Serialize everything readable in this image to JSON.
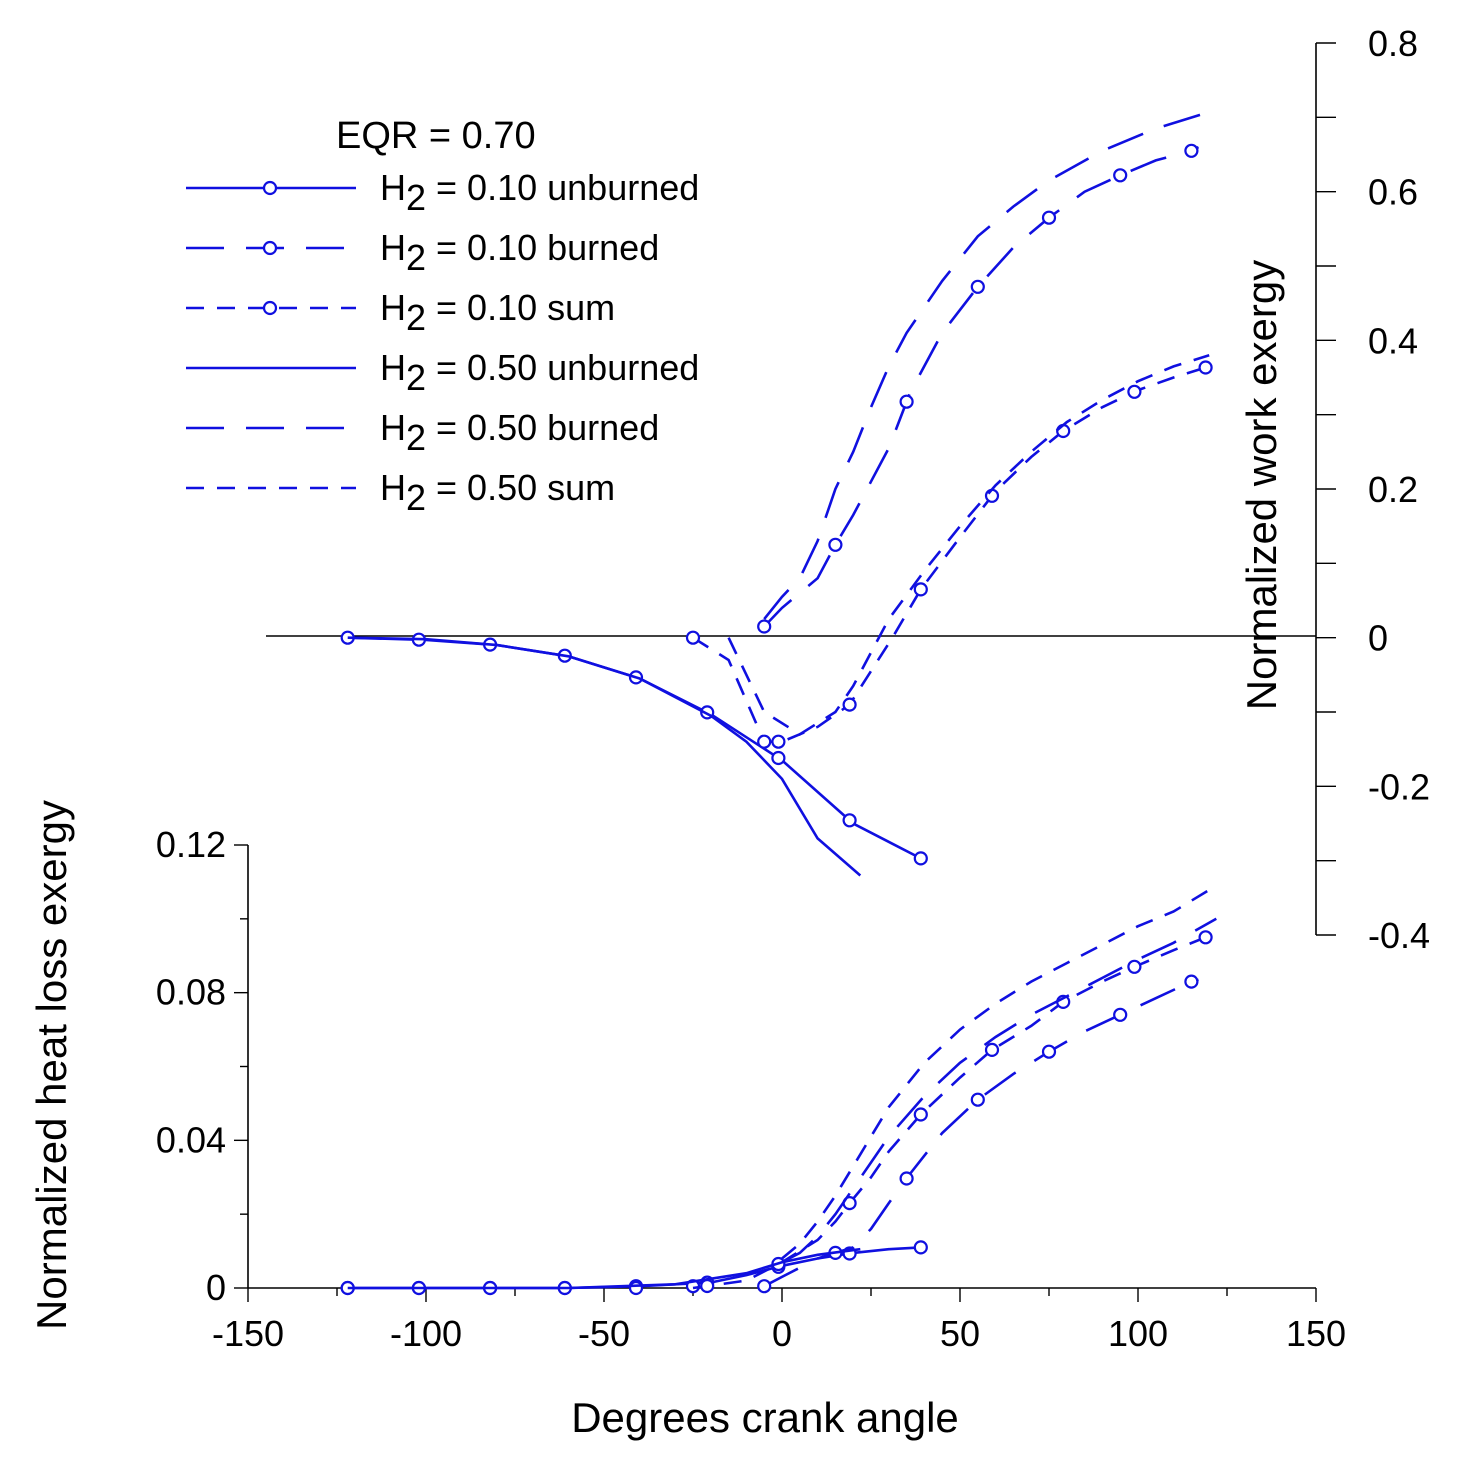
{
  "chart_data": {
    "type": "line",
    "title": "",
    "color": "#1010e0",
    "xlabel": "Degrees crank angle",
    "xlim": [
      -150,
      150
    ],
    "xticks": [
      -150,
      -100,
      -50,
      0,
      50,
      100,
      150
    ],
    "ylabel_left": "Normalized heat loss exergy",
    "ylim_left": [
      0,
      0.12
    ],
    "yticks_left": [
      0,
      0.04,
      0.08,
      0.12
    ],
    "yticklabels_left": [
      "0",
      "0.04",
      "0.08",
      "0.12"
    ],
    "ylabel_right": "Normalized work exergy",
    "ylim_right": [
      -0.4,
      0.8
    ],
    "yticks_right": [
      -0.4,
      -0.2,
      0,
      0.2,
      0.4,
      0.6,
      0.8
    ],
    "yticklabels_right": [
      "-0.4",
      "-0.2",
      "0",
      "0.2",
      "0.4",
      "0.6",
      "0.8"
    ],
    "legend": {
      "title": "EQR = 0.70",
      "entries": [
        {
          "prefix": "H",
          "sub": "2",
          "rest": " = 0.10 unburned",
          "dash": "solid",
          "marker": true
        },
        {
          "prefix": "H",
          "sub": "2",
          "rest": " = 0.10 burned",
          "dash": "long",
          "marker": true
        },
        {
          "prefix": "H",
          "sub": "2",
          "rest": " = 0.10 sum",
          "dash": "short",
          "marker": true
        },
        {
          "prefix": "H",
          "sub": "2",
          "rest": " = 0.50 unburned",
          "dash": "solid",
          "marker": false
        },
        {
          "prefix": "H",
          "sub": "2",
          "rest": " = 0.50 burned",
          "dash": "long",
          "marker": false
        },
        {
          "prefix": "H",
          "sub": "2",
          "rest": " = 0.50 sum",
          "dash": "short",
          "marker": false
        }
      ]
    },
    "series": [
      {
        "name": "Work H2 = 0.10 unburned",
        "axis": "right",
        "dash": "solid",
        "marker": true,
        "x": [
          -122,
          -100,
          -80,
          -60,
          -40,
          -20,
          0,
          20,
          39
        ],
        "y": [
          0.0,
          -0.003,
          -0.01,
          -0.025,
          -0.055,
          -0.103,
          -0.165,
          -0.25,
          -0.297
        ],
        "marker_x": [
          -122,
          -102,
          -82,
          -61,
          -41,
          -21,
          -1,
          19,
          39
        ]
      },
      {
        "name": "Work H2 = 0.10 burned",
        "axis": "right",
        "dash": "long",
        "marker": true,
        "x": [
          -5,
          0,
          10,
          15,
          20,
          30,
          36,
          45,
          55,
          65,
          75,
          85,
          95,
          105,
          115,
          117
        ],
        "y": [
          0.015,
          0.04,
          0.08,
          0.125,
          0.165,
          0.255,
          0.33,
          0.41,
          0.472,
          0.525,
          0.565,
          0.6,
          0.622,
          0.642,
          0.655,
          0.66
        ],
        "marker_x": [
          -5,
          15,
          35,
          55,
          75,
          95,
          115
        ]
      },
      {
        "name": "Work H2 = 0.10 sum",
        "axis": "right",
        "dash": "short",
        "marker": true,
        "x": [
          -25,
          -15,
          -5,
          0,
          10,
          19,
          25,
          31,
          39,
          50,
          60,
          70,
          79,
          90,
          100,
          110,
          120
        ],
        "y": [
          0.0,
          -0.03,
          -0.14,
          -0.14,
          -0.12,
          -0.09,
          -0.045,
          0.0,
          0.065,
          0.135,
          0.197,
          0.243,
          0.278,
          0.31,
          0.333,
          0.35,
          0.365
        ],
        "marker_x": [
          -25,
          -5,
          -1,
          19,
          39,
          59,
          79,
          99,
          119
        ]
      },
      {
        "name": "Work H2 = 0.50 unburned",
        "axis": "right",
        "dash": "solid",
        "marker": false,
        "x": [
          -122,
          -100,
          -80,
          -60,
          -40,
          -20,
          -10,
          0,
          10,
          22
        ],
        "y": [
          0.0,
          -0.002,
          -0.01,
          -0.025,
          -0.055,
          -0.105,
          -0.14,
          -0.19,
          -0.27,
          -0.32
        ]
      },
      {
        "name": "Work H2 = 0.50 burned",
        "axis": "right",
        "dash": "long",
        "marker": false,
        "x": [
          -5,
          0,
          5,
          10,
          15,
          20,
          25,
          30,
          35,
          45,
          55,
          65,
          75,
          90,
          105,
          122
        ],
        "y": [
          0.025,
          0.055,
          0.08,
          0.13,
          0.2,
          0.25,
          0.31,
          0.365,
          0.41,
          0.48,
          0.54,
          0.58,
          0.615,
          0.655,
          0.685,
          0.71
        ]
      },
      {
        "name": "Work H2 = 0.50 sum",
        "axis": "right",
        "dash": "short",
        "marker": false,
        "x": [
          -15,
          -5,
          5,
          15,
          20,
          25,
          30,
          40,
          50,
          60,
          70,
          80,
          90,
          100,
          110,
          120
        ],
        "y": [
          0.0,
          -0.1,
          -0.13,
          -0.1,
          -0.065,
          -0.02,
          0.025,
          0.09,
          0.15,
          0.205,
          0.25,
          0.29,
          0.32,
          0.345,
          0.365,
          0.38
        ]
      },
      {
        "name": "Heat H2 = 0.10 unburned",
        "axis": "left",
        "dash": "solid",
        "marker": true,
        "x": [
          -122,
          -100,
          -80,
          -60,
          -40,
          -20,
          -10,
          0,
          10,
          20,
          30,
          39
        ],
        "y": [
          0.0,
          0.0,
          0.0,
          0.0,
          0.0005,
          0.0015,
          0.0035,
          0.006,
          0.008,
          0.0095,
          0.0105,
          0.011
        ],
        "marker_x": [
          -122,
          -102,
          -82,
          -61,
          -41,
          -21,
          -1,
          19,
          39
        ]
      },
      {
        "name": "Heat H2 = 0.10 burned",
        "axis": "left",
        "dash": "long",
        "marker": true,
        "x": [
          -5,
          0,
          5,
          10,
          15,
          20,
          25,
          30,
          36,
          45,
          55,
          65,
          75,
          85,
          95,
          105,
          115,
          117
        ],
        "y": [
          0.0005,
          0.003,
          0.0055,
          0.008,
          0.0095,
          0.011,
          0.016,
          0.023,
          0.031,
          0.042,
          0.051,
          0.058,
          0.064,
          0.0695,
          0.074,
          0.0785,
          0.083,
          0.0835
        ],
        "marker_x": [
          -25,
          -5,
          15,
          35,
          55,
          75,
          95,
          115
        ]
      },
      {
        "name": "Heat H2 = 0.10 sum",
        "axis": "left",
        "dash": "short",
        "marker": true,
        "x": [
          -25,
          -10,
          0,
          5,
          10,
          15,
          19,
          25,
          30,
          39,
          50,
          59,
          70,
          79,
          90,
          99,
          110,
          119
        ],
        "y": [
          0.0,
          0.002,
          0.007,
          0.01,
          0.013,
          0.018,
          0.023,
          0.03,
          0.037,
          0.047,
          0.057,
          0.0645,
          0.071,
          0.0775,
          0.083,
          0.087,
          0.0915,
          0.095
        ],
        "marker_x": [
          -122,
          -102,
          -82,
          -61,
          -41,
          -21,
          -1,
          19,
          39,
          59,
          79,
          99,
          119
        ]
      },
      {
        "name": "Heat H2 = 0.50 unburned",
        "axis": "left",
        "dash": "solid",
        "marker": false,
        "x": [
          -122,
          -60,
          -30,
          -10,
          0,
          10,
          22
        ],
        "y": [
          0.0,
          0.0,
          0.001,
          0.004,
          0.007,
          0.009,
          0.0105
        ]
      },
      {
        "name": "Heat H2 = 0.50 burned",
        "axis": "left",
        "dash": "long",
        "marker": false,
        "x": [
          0,
          5,
          10,
          15,
          20,
          25,
          30,
          40,
          50,
          60,
          70,
          80,
          90,
          100,
          110,
          122
        ],
        "y": [
          0.007,
          0.0095,
          0.014,
          0.02,
          0.027,
          0.034,
          0.041,
          0.052,
          0.061,
          0.068,
          0.074,
          0.079,
          0.084,
          0.089,
          0.0935,
          0.1
        ]
      },
      {
        "name": "Heat H2 = 0.50 sum",
        "axis": "left",
        "dash": "short",
        "marker": false,
        "x": [
          0,
          5,
          10,
          15,
          20,
          25,
          30,
          40,
          50,
          60,
          70,
          80,
          90,
          100,
          110,
          122
        ],
        "y": [
          0.008,
          0.012,
          0.018,
          0.025,
          0.033,
          0.041,
          0.049,
          0.061,
          0.07,
          0.077,
          0.083,
          0.088,
          0.093,
          0.098,
          0.102,
          0.109
        ]
      }
    ]
  }
}
